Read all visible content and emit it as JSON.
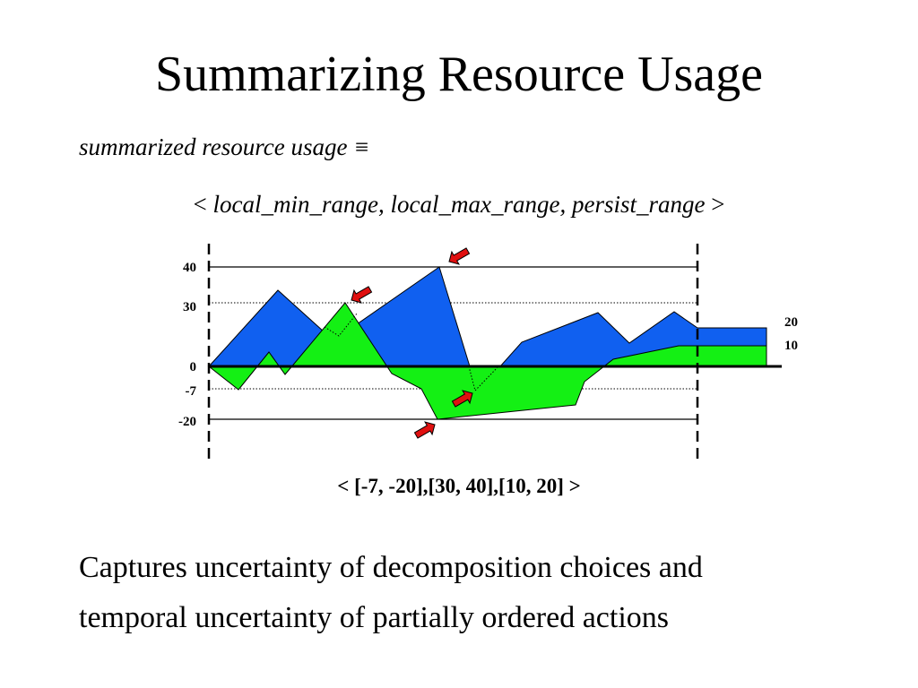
{
  "slide": {
    "title": "Summarizing Resource Usage",
    "definition": "summarized resource usage ≡",
    "tuple": {
      "open": "< ",
      "fields": "local_min_range, local_max_range, persist_range",
      "close": " >"
    },
    "summary": "< [-7, -20],[30, 40],[10, 20] >",
    "caption_lines": [
      "Captures uncertainty of decomposition choices and",
      "temporal uncertainty of partially ordered actions"
    ]
  },
  "colors": {
    "blue_fill": "#1060f0",
    "green_fill": "#14f014",
    "arrow": "#e01010",
    "stroke": "#000000"
  },
  "figure": {
    "y_ticks": [
      "40",
      "30",
      "0",
      "-7",
      "-20"
    ],
    "right_labels": [
      "20",
      "10"
    ],
    "arrow_count": 4
  }
}
